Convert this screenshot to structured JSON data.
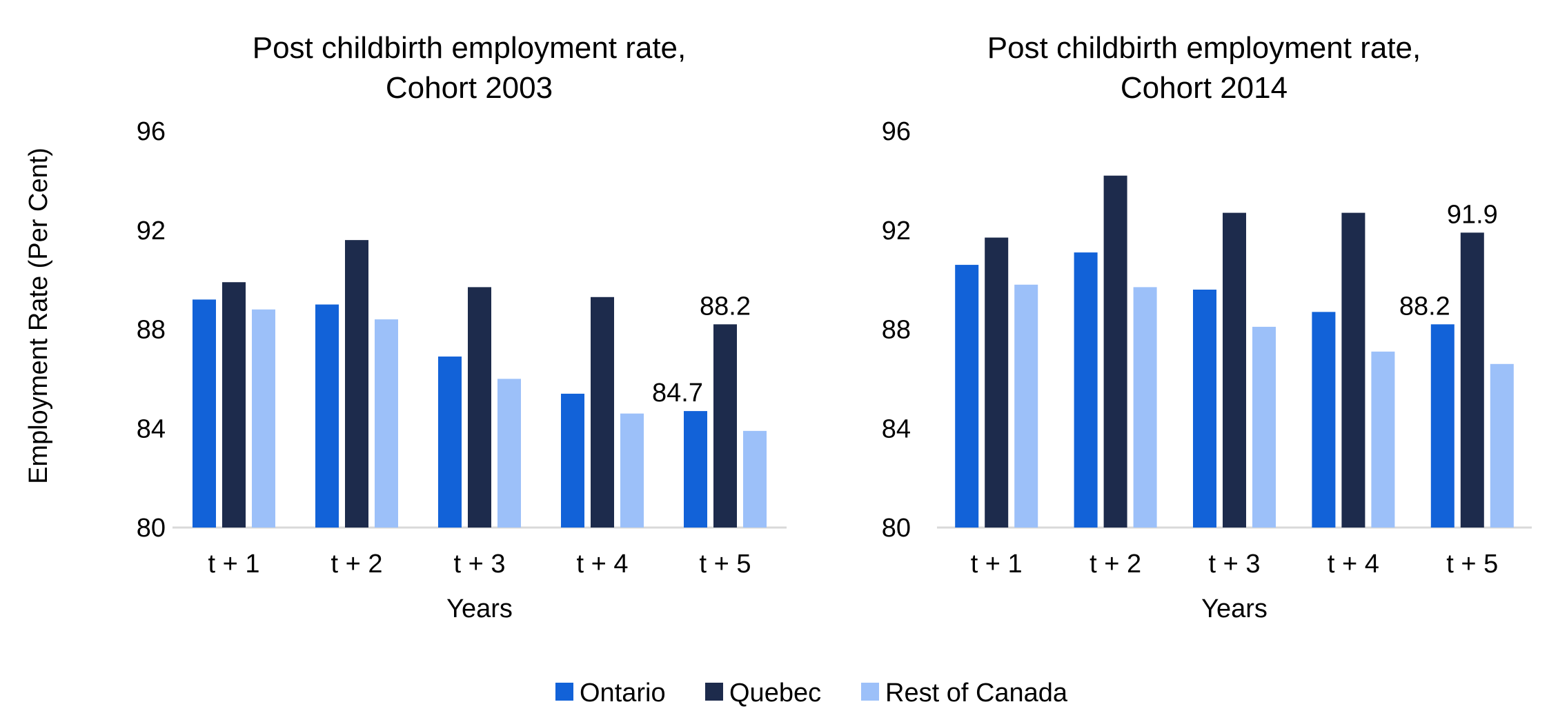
{
  "shared": {
    "ylabel": "Employment Rate (Per Cent)",
    "xlabel": "Years"
  },
  "legend": {
    "placement": "bottom-center",
    "items": [
      {
        "name": "Ontario",
        "color": "#1262D8"
      },
      {
        "name": "Quebec",
        "color": "#1D2B4C"
      },
      {
        "name": "Rest of Canada",
        "color": "#9CC0F9"
      }
    ]
  },
  "chart_data": [
    {
      "type": "bar",
      "title": [
        "Post childbirth employment rate,",
        "Cohort 2003"
      ],
      "xlabel": "Years",
      "ylabel": "Employment Rate (Per Cent)",
      "categories": [
        "t + 1",
        "t + 2",
        "t + 3",
        "t + 4",
        "t + 5"
      ],
      "ylim": [
        80,
        96
      ],
      "yticks": [
        80,
        84,
        88,
        92,
        96
      ],
      "grid": false,
      "series": [
        {
          "name": "Ontario",
          "color": "#1262D8",
          "values": [
            89.2,
            89.0,
            86.9,
            85.4,
            84.7
          ]
        },
        {
          "name": "Quebec",
          "color": "#1D2B4C",
          "values": [
            89.9,
            91.6,
            89.7,
            89.3,
            88.2
          ]
        },
        {
          "name": "Rest of Canada",
          "color": "#9CC0F9",
          "values": [
            88.8,
            88.4,
            86.0,
            84.6,
            83.9
          ]
        }
      ],
      "data_labels": [
        {
          "series": 0,
          "index": 4,
          "text": "84.7"
        },
        {
          "series": 1,
          "index": 4,
          "text": "88.2"
        }
      ]
    },
    {
      "type": "bar",
      "title": [
        "Post childbirth employment rate,",
        "Cohort 2014"
      ],
      "xlabel": "Years",
      "ylabel": "",
      "categories": [
        "t + 1",
        "t + 2",
        "t + 3",
        "t + 4",
        "t + 5"
      ],
      "ylim": [
        80,
        96
      ],
      "yticks": [
        80,
        84,
        88,
        92,
        96
      ],
      "grid": false,
      "series": [
        {
          "name": "Ontario",
          "color": "#1262D8",
          "values": [
            90.6,
            91.1,
            89.6,
            88.7,
            88.2
          ]
        },
        {
          "name": "Quebec",
          "color": "#1D2B4C",
          "values": [
            91.7,
            94.2,
            92.7,
            92.7,
            91.9
          ]
        },
        {
          "name": "Rest of Canada",
          "color": "#9CC0F9",
          "values": [
            89.8,
            89.7,
            88.1,
            87.1,
            86.6
          ]
        }
      ],
      "data_labels": [
        {
          "series": 0,
          "index": 4,
          "text": "88.2"
        },
        {
          "series": 1,
          "index": 4,
          "text": "91.9"
        }
      ]
    }
  ]
}
